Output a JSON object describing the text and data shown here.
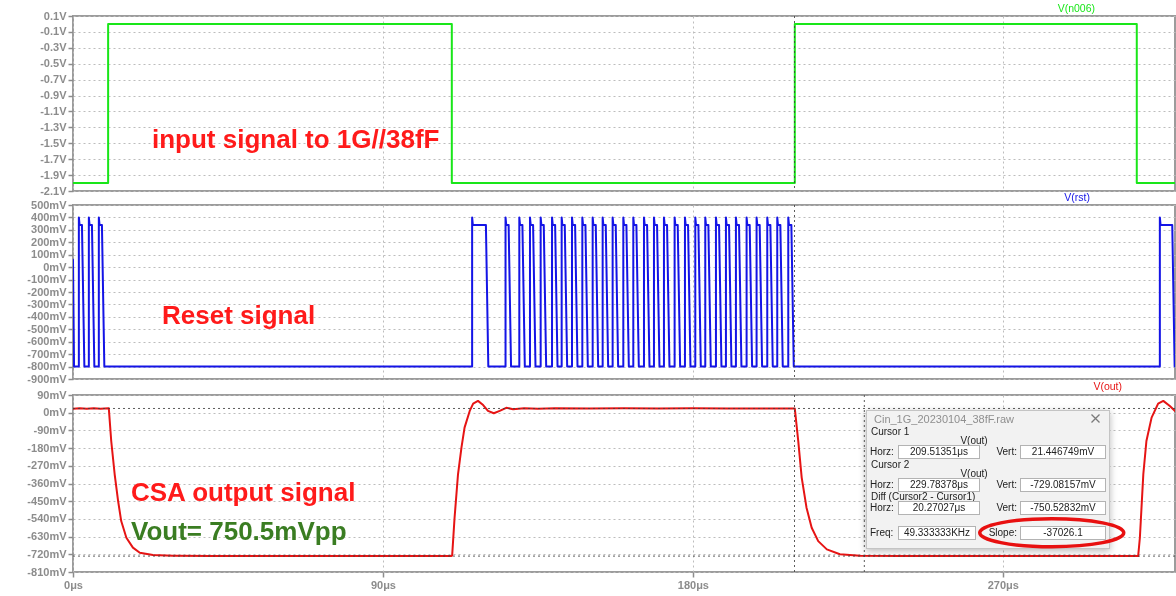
{
  "chart_data": [
    {
      "type": "line",
      "xlim": [
        0,
        320
      ],
      "xticks": [
        0,
        90,
        180,
        270
      ],
      "tick_labels": "y",
      "ylim": [
        -2.1,
        0.1
      ],
      "yticks": [
        {
          "value": 0.1,
          "label": "0.1V"
        },
        {
          "value": -0.1,
          "label": "-0.1V"
        },
        {
          "value": -0.3,
          "label": "-0.3V"
        },
        {
          "value": -0.5,
          "label": "-0.5V"
        },
        {
          "value": -0.7,
          "label": "-0.7V"
        },
        {
          "value": -0.9,
          "label": "-0.9V"
        },
        {
          "value": -1.1,
          "label": "-1.1V"
        },
        {
          "value": -1.3,
          "label": "-1.3V"
        },
        {
          "value": -1.5,
          "label": "-1.5V"
        },
        {
          "value": -1.7,
          "label": "-1.7V"
        },
        {
          "value": -1.9,
          "label": "-1.9V"
        },
        {
          "value": -2.1,
          "label": "-2.1V"
        }
      ],
      "grid": true,
      "series": [
        {
          "name": "V(n006)",
          "color": "#19e619",
          "x": [
            0,
            10.2,
            10.2,
            110,
            110,
            209.6,
            209.6,
            308.9,
            308.9,
            320
          ],
          "values": [
            -2,
            -2,
            0,
            0,
            -2,
            -2,
            0,
            0,
            -2,
            -2
          ]
        }
      ],
      "ref_lines": [
        {
          "axis": "x",
          "value": 209.51351,
          "color": "#404040",
          "line_style": "dotted"
        }
      ],
      "annotations": [
        "input signal to 1G//38fF"
      ]
    },
    {
      "type": "line",
      "xlim": [
        0,
        320
      ],
      "xticks": [
        0,
        90,
        180,
        270
      ],
      "tick_labels": "y",
      "ylim": [
        -900,
        500
      ],
      "yticks": [
        {
          "value": 500,
          "label": "500mV"
        },
        {
          "value": 400,
          "label": "400mV"
        },
        {
          "value": 300,
          "label": "300mV"
        },
        {
          "value": 200,
          "label": "200mV"
        },
        {
          "value": 100,
          "label": "100mV"
        },
        {
          "value": 0,
          "label": "0mV"
        },
        {
          "value": -100,
          "label": "-100mV"
        },
        {
          "value": -200,
          "label": "-200mV"
        },
        {
          "value": -300,
          "label": "-300mV"
        },
        {
          "value": -400,
          "label": "-400mV"
        },
        {
          "value": -500,
          "label": "-500mV"
        },
        {
          "value": -600,
          "label": "-600mV"
        },
        {
          "value": -700,
          "label": "-700mV"
        },
        {
          "value": -800,
          "label": "-800mV"
        },
        {
          "value": -900,
          "label": "-900mV"
        }
      ],
      "grid": true,
      "series": [
        {
          "name": "V(rst)",
          "color": "#1414e6",
          "x": [
            0,
            0.3,
            1.7,
            1.7,
            1.9,
            2.6,
            3.3,
            4.6,
            4.6,
            4.8,
            5.5,
            6.2,
            7.5,
            7.5,
            7.7,
            8.4,
            9.1,
            115.9,
            115.9,
            116.1,
            119.9,
            120.6,
            125.6,
            125.6,
            125.8,
            126.5,
            127.2,
            129.6,
            129.6,
            129.8,
            130.5,
            131.2,
            132.7,
            132.7,
            132.9,
            133.6,
            134.3,
            135.8,
            135.8,
            136,
            136.7,
            137.4,
            139.1,
            139.1,
            139.3,
            140,
            140.7,
            141.9,
            141.9,
            142.1,
            142.8,
            143.5,
            144.9,
            144.9,
            145.1,
            145.8,
            146.5,
            147.9,
            147.9,
            148.1,
            148.8,
            149.5,
            150.9,
            150.9,
            151.1,
            151.8,
            152.5,
            153.8,
            153.8,
            154,
            154.7,
            155.4,
            156.7,
            156.7,
            156.9,
            157.6,
            158.3,
            159.8,
            159.8,
            160,
            160.7,
            161.4,
            162.7,
            162.7,
            162.9,
            163.6,
            164.3,
            165.8,
            165.8,
            166,
            166.7,
            167.4,
            168.7,
            168.7,
            168.9,
            169.6,
            170.3,
            171.6,
            171.6,
            171.8,
            172.5,
            173.2,
            174.7,
            174.7,
            174.9,
            175.6,
            176.3,
            177.7,
            177.7,
            177.9,
            178.6,
            179.3,
            180.7,
            180.7,
            180.9,
            181.6,
            182.3,
            183.6,
            183.6,
            183.8,
            184.5,
            185.2,
            186.7,
            186.7,
            186.9,
            187.6,
            188.3,
            189.6,
            189.6,
            189.8,
            190.5,
            191.2,
            192.5,
            192.5,
            192.7,
            193.4,
            194.1,
            195.6,
            195.6,
            195.8,
            196.5,
            197.2,
            198.5,
            198.5,
            198.7,
            199.4,
            200.1,
            201.6,
            201.6,
            201.8,
            202.5,
            203.2,
            204.5,
            204.5,
            204.7,
            205.4,
            206.1,
            207.7,
            207.7,
            207.9,
            208.6,
            209.3,
            315.6,
            315.6,
            315.8,
            319.2,
            319.9
          ],
          "values": [
            60,
            -800,
            -800,
            400,
            340,
            340,
            -800,
            -800,
            400,
            340,
            340,
            -800,
            -800,
            400,
            340,
            340,
            -800,
            -800,
            400,
            340,
            340,
            -800,
            -800,
            400,
            340,
            340,
            -800,
            -800,
            400,
            340,
            340,
            -800,
            -800,
            400,
            340,
            340,
            -800,
            -800,
            400,
            340,
            340,
            -800,
            -800,
            400,
            340,
            340,
            -800,
            -800,
            400,
            340,
            340,
            -800,
            -800,
            400,
            340,
            340,
            -800,
            -800,
            400,
            340,
            340,
            -800,
            -800,
            400,
            340,
            340,
            -800,
            -800,
            400,
            340,
            340,
            -800,
            -800,
            400,
            340,
            340,
            -800,
            -800,
            400,
            340,
            340,
            -800,
            -800,
            400,
            340,
            340,
            -800,
            -800,
            400,
            340,
            340,
            -800,
            -800,
            400,
            340,
            340,
            -800,
            -800,
            400,
            340,
            340,
            -800,
            -800,
            400,
            340,
            340,
            -800,
            -800,
            400,
            340,
            340,
            -800,
            -800,
            400,
            340,
            340,
            -800,
            -800,
            400,
            340,
            340,
            -800,
            -800,
            400,
            340,
            340,
            -800,
            -800,
            400,
            340,
            340,
            -800,
            -800,
            400,
            340,
            340,
            -800,
            -800,
            400,
            340,
            340,
            -800,
            -800,
            400,
            340,
            340,
            -800,
            -800,
            400,
            340,
            340,
            -800,
            -800,
            400,
            340,
            340,
            -800,
            -800,
            400,
            340,
            340,
            -800,
            -800,
            400,
            340,
            340,
            -800
          ]
        }
      ],
      "ref_lines": [
        {
          "axis": "x",
          "value": 209.51351,
          "color": "#404040",
          "line_style": "dotted"
        }
      ],
      "annotations": [
        "Reset signal"
      ]
    },
    {
      "type": "line",
      "xlim": [
        0,
        320
      ],
      "xticks": [
        {
          "value": 0,
          "label": "0μs"
        },
        {
          "value": 90,
          "label": "90μs"
        },
        {
          "value": 180,
          "label": "180μs"
        },
        {
          "value": 270,
          "label": "270μs"
        }
      ],
      "ylim": [
        -810,
        90
      ],
      "yticks": [
        {
          "value": 90,
          "label": "90mV"
        },
        {
          "value": 0,
          "label": "0mV"
        },
        {
          "value": -90,
          "label": "-90mV"
        },
        {
          "value": -180,
          "label": "-180mV"
        },
        {
          "value": -270,
          "label": "-270mV"
        },
        {
          "value": -360,
          "label": "-360mV"
        },
        {
          "value": -450,
          "label": "-450mV"
        },
        {
          "value": -540,
          "label": "-540mV"
        },
        {
          "value": -630,
          "label": "-630mV"
        },
        {
          "value": -720,
          "label": "-720mV"
        },
        {
          "value": -810,
          "label": "-810mV"
        }
      ],
      "grid": true,
      "series": [
        {
          "name": "V(out)",
          "color": "#e61414",
          "x": [
            0,
            2,
            4,
            6,
            8,
            10.4,
            11.1,
            12.1,
            13.1,
            14,
            15.5,
            17.4,
            19.4,
            23.2,
            29,
            40,
            109.8,
            110.1,
            110.8,
            111.8,
            112.8,
            113.7,
            115.2,
            116.2,
            117.6,
            119.1,
            120.5,
            122.2,
            123.9,
            125.8,
            127.8,
            131,
            135,
            140,
            150,
            160,
            170,
            180,
            190,
            200,
            209.6,
            210.6,
            211.6,
            213,
            214.5,
            216.4,
            218.9,
            222.7,
            228.5,
            240,
            309.3,
            309.8,
            310.8,
            311.7,
            313.2,
            315.1,
            316.6,
            318.5,
            320
          ],
          "values": [
            20,
            23,
            20,
            23,
            20,
            22,
            -144,
            -313,
            -449,
            -551,
            -636,
            -686,
            -712,
            -724,
            -727,
            -729,
            -729,
            -727,
            -534,
            -313,
            -178,
            -76,
            9,
            46,
            60,
            39,
            9,
            -3,
            9,
            25,
            18,
            23,
            20,
            22,
            21,
            22,
            21,
            22,
            21,
            21,
            21,
            -144,
            -330,
            -483,
            -585,
            -653,
            -695,
            -720,
            -727,
            -729,
            -729,
            -636,
            -313,
            -144,
            -25,
            46,
            60,
            34,
            9
          ]
        }
      ],
      "ref_lines": [
        {
          "axis": "x",
          "value": 209.51351,
          "color": "#404040",
          "line_style": "dotted"
        },
        {
          "axis": "x",
          "value": 229.78378,
          "color": "#404040",
          "line_style": "dotted"
        },
        {
          "axis": "y",
          "value": 21.446749,
          "color": "#404040",
          "line_style": "dotted"
        },
        {
          "axis": "y",
          "value": -729.08157,
          "color": "#404040",
          "line_style": "dotted"
        }
      ],
      "annotations": [
        "CSA output signal",
        "Vout= 750.5mVpp",
        "Cin_1G_20230104_38fF.raw",
        "Cursor 1",
        "V(out)",
        "Horz:",
        "209.51351μs",
        "Vert:",
        "21.446749mV",
        "Cursor 2",
        "V(out)",
        "Horz:",
        "229.78378μs",
        "Vert:",
        "-729.08157mV",
        "Diff (Cursor2 - Cursor1)",
        "Horz:",
        "20.27027μs",
        "Vert:",
        "-750.52832mV",
        "Freq:",
        "49.333333KHz",
        "Slope:",
        "-37026.1"
      ]
    }
  ]
}
